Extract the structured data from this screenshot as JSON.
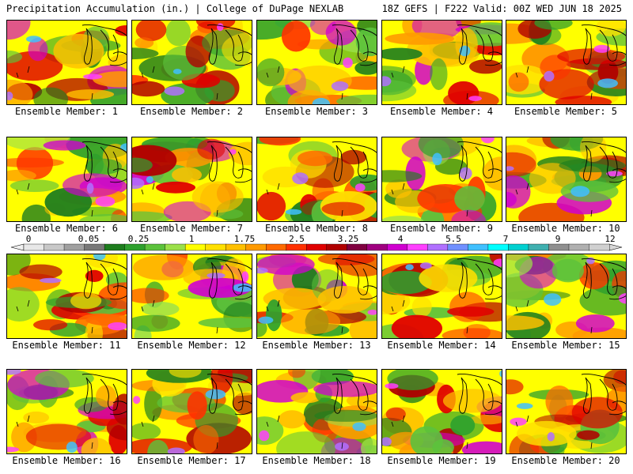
{
  "header": {
    "left_title": "Precipitation Accumulation (in.) | College of DuPage NEXLAB",
    "right_title": "18Z GEFS | F222 Valid: 00Z WED JUN 18 2025"
  },
  "panels": [
    {
      "label": "Ensemble Member: 1"
    },
    {
      "label": "Ensemble Member: 2"
    },
    {
      "label": "Ensemble Member: 3"
    },
    {
      "label": "Ensemble Member: 4"
    },
    {
      "label": "Ensemble Member: 5"
    },
    {
      "label": "Ensemble Member: 6"
    },
    {
      "label": "Ensemble Member: 7"
    },
    {
      "label": "Ensemble Member: 8"
    },
    {
      "label": "Ensemble Member: 9"
    },
    {
      "label": "Ensemble Member: 10"
    },
    {
      "label": "Ensemble Member: 11"
    },
    {
      "label": "Ensemble Member: 12"
    },
    {
      "label": "Ensemble Member: 13"
    },
    {
      "label": "Ensemble Member: 14"
    },
    {
      "label": "Ensemble Member: 15"
    },
    {
      "label": "Ensemble Member: 16"
    },
    {
      "label": "Ensemble Member: 17"
    },
    {
      "label": "Ensemble Member: 18"
    },
    {
      "label": "Ensemble Member: 19"
    },
    {
      "label": "Ensemble Member: 20"
    }
  ],
  "colorbar": {
    "tick_labels": [
      "0",
      "0.05",
      "0.25",
      "1",
      "1.75",
      "2.5",
      "3.25",
      "4",
      "5.5",
      "7",
      "9",
      "12"
    ],
    "colors": [
      "#e8e8e8",
      "#c8c8c8",
      "#a0a0a0",
      "#787878",
      "#1e7d1e",
      "#2ea02e",
      "#5cc23c",
      "#9be04a",
      "#ffff00",
      "#ffe000",
      "#ffc000",
      "#ff9a00",
      "#ff6a00",
      "#ff3000",
      "#e00000",
      "#b00000",
      "#800040",
      "#a00080",
      "#d000d0",
      "#ff40ff",
      "#b070ff",
      "#7090ff",
      "#40c0ff",
      "#00ffff",
      "#00d0d0",
      "#40b0b0",
      "#909090",
      "#b0b0b0",
      "#d0d0d0"
    ]
  }
}
